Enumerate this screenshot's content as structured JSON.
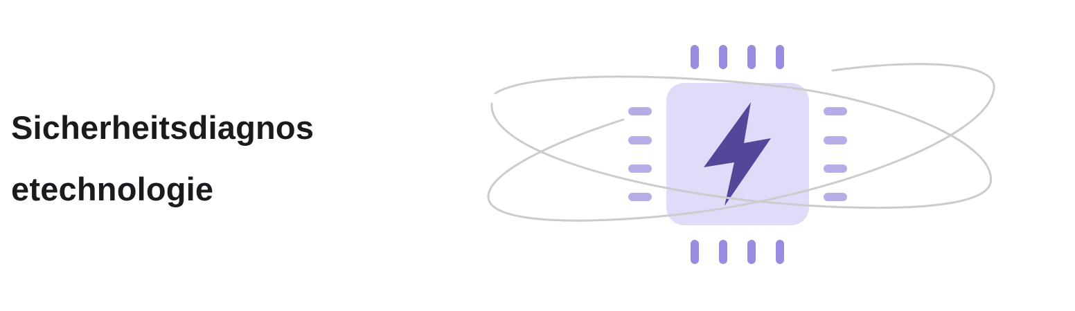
{
  "feature": {
    "title_line_1": "Sicherheitsdiagnos",
    "title_line_2": "etechnologie"
  },
  "illustration": {
    "icon": "chip-with-lightning-bolt-icon",
    "orbit_icon": "orbit-ring-icon",
    "colors": {
      "chip_body": "#e0dbf8",
      "bolt": "#56469a",
      "pins_vertical": "#9b8be0",
      "pins_horizontal": "#b8ace8",
      "orbit_stroke": "#cccccc"
    }
  }
}
